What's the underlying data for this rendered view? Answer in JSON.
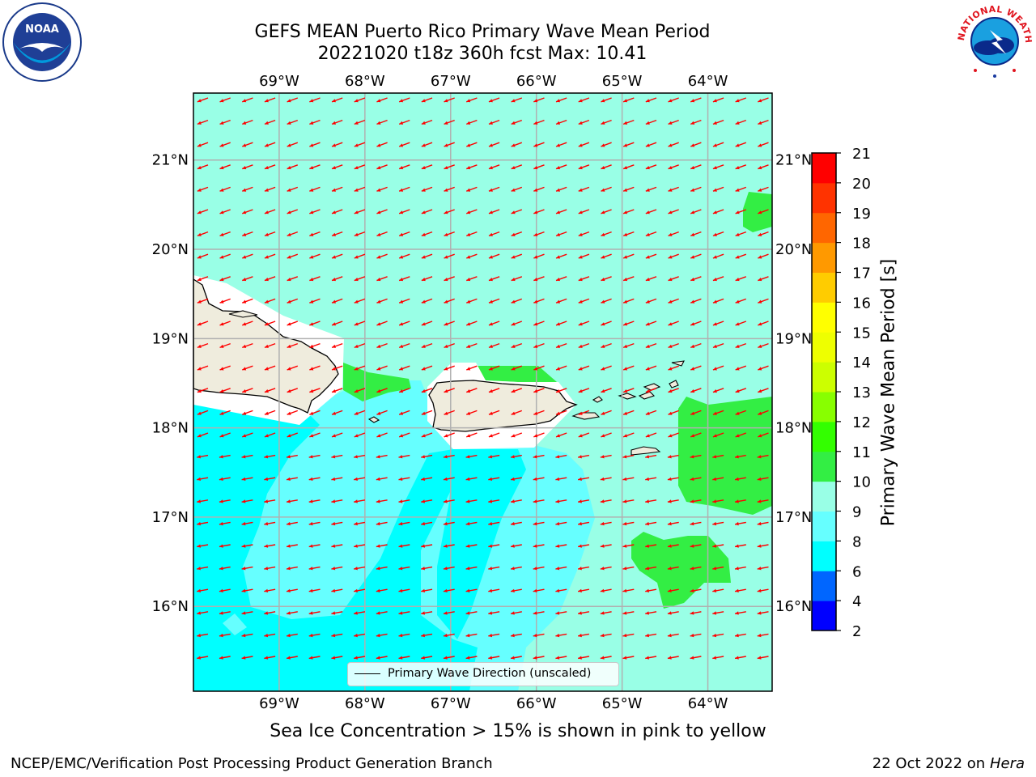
{
  "title": {
    "line1": "GEFS MEAN Puerto Rico Primary Wave Mean Period",
    "line2": "20221020 t18z 360h fcst   Max: 10.41"
  },
  "logos": {
    "left": {
      "icon": "noaa-logo",
      "text": "NOAA"
    },
    "right": {
      "icon": "nws-logo",
      "text": "NATIONAL WEATHER SERVICE"
    }
  },
  "map": {
    "lon_labels": [
      "69°W",
      "68°W",
      "67°W",
      "66°W",
      "65°W",
      "64°W"
    ],
    "lat_labels": [
      "21°N",
      "20°N",
      "19°N",
      "18°N",
      "17°N",
      "16°N"
    ],
    "lon_range": [
      -70,
      -63.25
    ],
    "lat_range": [
      15.05,
      21.75
    ],
    "colors": {
      "land": "#efecdd",
      "vector": "#ff0000",
      "grid": "#b0b0b0",
      "band_6_8": "#00ffff",
      "band_8_9": "#66ffff",
      "band_9_10": "#99ffe6",
      "band_10_11": "#33ee44"
    }
  },
  "legend": {
    "label": "Primary Wave Direction (unscaled)"
  },
  "colorbar": {
    "label": "Primary Wave Mean Period [s]",
    "ticks": [
      "2",
      "4",
      "6",
      "8",
      "9",
      "10",
      "11",
      "12",
      "13",
      "14",
      "15",
      "16",
      "17",
      "18",
      "19",
      "20",
      "21"
    ],
    "colors": [
      "#0000ff",
      "#0066ff",
      "#00ffff",
      "#66ffff",
      "#99ffe6",
      "#33ee44",
      "#33ff00",
      "#88ff00",
      "#ccff00",
      "#eeff00",
      "#ffff00",
      "#ffcc00",
      "#ff9900",
      "#ff6600",
      "#ff3300",
      "#ff0000"
    ]
  },
  "subtitle": "Sea Ice Concentration > 15% is shown in pink to yellow",
  "footer": {
    "left": "NCEP/EMC/Verification Post Processing Product Generation Branch",
    "right_prefix": "22 Oct 2022 on ",
    "right_machine": "Hera"
  }
}
